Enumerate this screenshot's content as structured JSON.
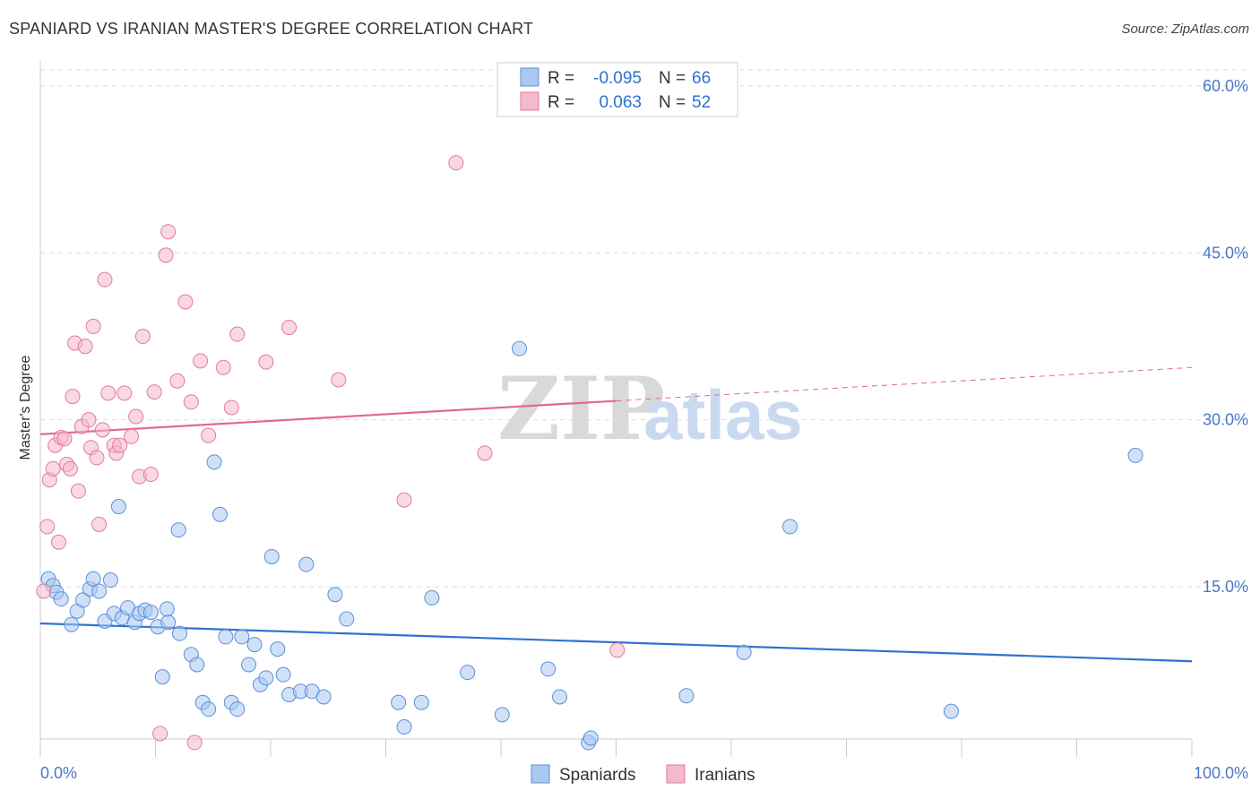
{
  "title": "SPANIARD VS IRANIAN MASTER'S DEGREE CORRELATION CHART",
  "source": "Source: ZipAtlas.com",
  "watermark": {
    "part1": "ZIP",
    "part2": "atlas"
  },
  "legend": {
    "rows": [
      {
        "r_label": "R =",
        "r_value": "-0.095",
        "n_label": "N =",
        "n_value": "66"
      },
      {
        "r_label": "R =",
        "r_value": "0.063",
        "n_label": "N =",
        "n_value": "52"
      }
    ]
  },
  "bottom_legend": {
    "series1": "Spaniards",
    "series2": "Iranians"
  },
  "colors": {
    "blue_fill": "#aac8f0",
    "blue_stroke": "#5b8fd8",
    "blue_line": "#2f73d0",
    "pink_fill": "#f5b8cc",
    "pink_stroke": "#e07b9b",
    "pink_line": "#e06890",
    "axis_label": "#4a78c8"
  },
  "chart_data": {
    "type": "scatter",
    "title": "SPANIARD VS IRANIAN MASTER'S DEGREE CORRELATION CHART",
    "xlabel": "",
    "ylabel": "Master's Degree",
    "xlim": [
      0,
      100
    ],
    "ylim": [
      0,
      62
    ],
    "x_tick_labels": [
      "0.0%",
      "100.0%"
    ],
    "y_ticks": [
      15,
      30,
      45,
      60
    ],
    "y_tick_labels": [
      "15.0%",
      "30.0%",
      "45.0%",
      "60.0%"
    ],
    "grid": true,
    "series": [
      {
        "name": "Spaniards",
        "color": "#aac8f0",
        "r": -0.095,
        "n": 66,
        "trend": {
          "x": [
            0,
            100
          ],
          "y": [
            11.7,
            8.3
          ],
          "dashed_from": null
        },
        "points": [
          [
            0.7,
            15.7
          ],
          [
            1.1,
            15.1
          ],
          [
            1.4,
            14.5
          ],
          [
            1.8,
            13.9
          ],
          [
            2.7,
            11.6
          ],
          [
            3.2,
            12.8
          ],
          [
            3.7,
            13.8
          ],
          [
            4.3,
            14.8
          ],
          [
            4.6,
            15.7
          ],
          [
            5.1,
            14.6
          ],
          [
            5.6,
            11.9
          ],
          [
            6.1,
            15.6
          ],
          [
            6.4,
            12.6
          ],
          [
            7.1,
            12.2
          ],
          [
            7.6,
            13.1
          ],
          [
            8.2,
            11.8
          ],
          [
            8.6,
            12.6
          ],
          [
            9.1,
            12.9
          ],
          [
            9.6,
            12.7
          ],
          [
            10.2,
            11.4
          ],
          [
            11.1,
            11.8
          ],
          [
            12.1,
            10.8
          ],
          [
            13.1,
            8.9
          ],
          [
            13.6,
            8.0
          ],
          [
            10.6,
            6.9
          ],
          [
            12.0,
            20.1
          ],
          [
            14.1,
            4.6
          ],
          [
            14.6,
            4.0
          ],
          [
            15.1,
            26.2
          ],
          [
            15.6,
            21.5
          ],
          [
            16.1,
            10.5
          ],
          [
            16.6,
            4.6
          ],
          [
            17.1,
            4.0
          ],
          [
            17.5,
            10.5
          ],
          [
            18.1,
            8.0
          ],
          [
            18.6,
            9.8
          ],
          [
            19.1,
            6.2
          ],
          [
            19.6,
            6.8
          ],
          [
            20.1,
            17.7
          ],
          [
            20.6,
            9.4
          ],
          [
            21.1,
            7.1
          ],
          [
            21.6,
            5.3
          ],
          [
            22.6,
            5.6
          ],
          [
            23.1,
            17.0
          ],
          [
            23.6,
            5.6
          ],
          [
            24.6,
            5.1
          ],
          [
            25.6,
            14.3
          ],
          [
            26.6,
            12.1
          ],
          [
            31.1,
            4.6
          ],
          [
            31.6,
            2.4
          ],
          [
            33.1,
            4.6
          ],
          [
            34.0,
            14.0
          ],
          [
            37.1,
            7.3
          ],
          [
            40.1,
            3.5
          ],
          [
            41.6,
            36.4
          ],
          [
            44.1,
            7.6
          ],
          [
            45.1,
            5.1
          ],
          [
            47.6,
            1.0
          ],
          [
            47.8,
            1.4
          ],
          [
            56.1,
            5.2
          ],
          [
            61.1,
            9.1
          ],
          [
            65.1,
            20.4
          ],
          [
            79.1,
            3.8
          ],
          [
            95.1,
            26.8
          ],
          [
            11.0,
            13.0
          ],
          [
            6.8,
            22.2
          ]
        ]
      },
      {
        "name": "Iranians",
        "color": "#f5b8cc",
        "r": 0.063,
        "n": 52,
        "trend": {
          "x": [
            0,
            100
          ],
          "y": [
            28.7,
            34.7
          ],
          "dashed_from": 50
        },
        "points": [
          [
            0.3,
            14.6
          ],
          [
            0.6,
            20.4
          ],
          [
            0.8,
            24.6
          ],
          [
            1.1,
            25.6
          ],
          [
            1.3,
            27.7
          ],
          [
            1.6,
            19.0
          ],
          [
            1.8,
            28.4
          ],
          [
            2.1,
            28.3
          ],
          [
            2.3,
            26.0
          ],
          [
            2.6,
            25.6
          ],
          [
            2.8,
            32.1
          ],
          [
            3.0,
            36.9
          ],
          [
            3.3,
            23.6
          ],
          [
            3.6,
            29.4
          ],
          [
            3.9,
            36.6
          ],
          [
            4.2,
            30.0
          ],
          [
            4.4,
            27.5
          ],
          [
            4.6,
            38.4
          ],
          [
            4.9,
            26.6
          ],
          [
            5.1,
            20.6
          ],
          [
            5.4,
            29.1
          ],
          [
            5.6,
            42.6
          ],
          [
            5.9,
            32.4
          ],
          [
            6.4,
            27.7
          ],
          [
            6.6,
            27.0
          ],
          [
            6.9,
            27.7
          ],
          [
            7.3,
            32.4
          ],
          [
            7.9,
            28.5
          ],
          [
            8.3,
            30.3
          ],
          [
            8.6,
            24.9
          ],
          [
            8.9,
            37.5
          ],
          [
            9.6,
            25.1
          ],
          [
            9.9,
            32.5
          ],
          [
            10.4,
            1.8
          ],
          [
            10.9,
            44.8
          ],
          [
            11.1,
            46.9
          ],
          [
            11.9,
            33.5
          ],
          [
            12.6,
            40.6
          ],
          [
            13.1,
            31.6
          ],
          [
            13.4,
            1.0
          ],
          [
            13.9,
            35.3
          ],
          [
            14.6,
            28.6
          ],
          [
            15.9,
            34.7
          ],
          [
            16.6,
            31.1
          ],
          [
            17.1,
            37.7
          ],
          [
            19.6,
            35.2
          ],
          [
            21.6,
            38.3
          ],
          [
            25.9,
            33.6
          ],
          [
            31.6,
            22.8
          ],
          [
            36.1,
            53.1
          ],
          [
            38.6,
            27.0
          ],
          [
            50.1,
            9.3
          ]
        ]
      }
    ]
  }
}
